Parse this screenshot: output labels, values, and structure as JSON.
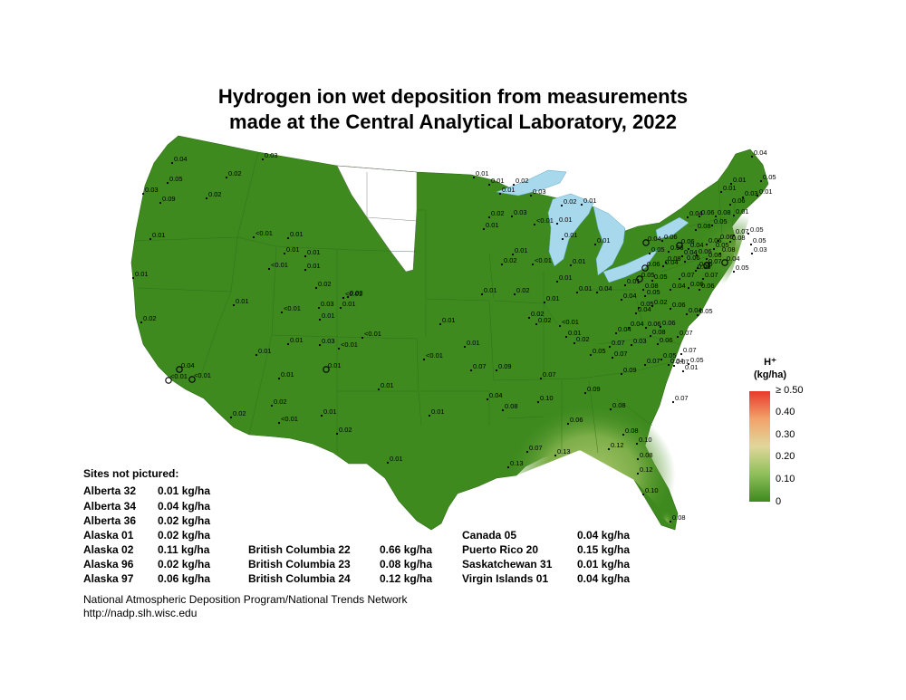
{
  "title_line1": "Hydrogen ion wet deposition from measurements",
  "title_line2": "made at the Central Analytical Laboratory, 2022",
  "legend": {
    "title_line1": "H⁺",
    "title_line2": "(kg/ha)",
    "ticks": [
      "≥ 0.50",
      "0.40",
      "0.30",
      "0.20",
      "0.10",
      "0"
    ],
    "colors": [
      "#3d8a1f",
      "#8fbf5a",
      "#e0d79a",
      "#f2a26a",
      "#e8392b"
    ]
  },
  "sites_not_pictured": {
    "title": "Sites not pictured:",
    "column1": [
      {
        "name": "Alberta 32",
        "value": "0.01 kg/ha"
      },
      {
        "name": "Alberta 34",
        "value": "0.04 kg/ha"
      },
      {
        "name": "Alberta 36",
        "value": "0.02 kg/ha"
      },
      {
        "name": "Alaska 01",
        "value": "0.02 kg/ha"
      },
      {
        "name": "Alaska 02",
        "value": "0.11 kg/ha"
      },
      {
        "name": "Alaska 96",
        "value": "0.02 kg/ha"
      },
      {
        "name": "Alaska 97",
        "value": "0.06 kg/ha"
      }
    ],
    "column2": [
      {
        "name": "British Columbia 22",
        "value": "0.66 kg/ha"
      },
      {
        "name": "British Columbia 23",
        "value": "0.08 kg/ha"
      },
      {
        "name": "British Columbia 24",
        "value": "0.12 kg/ha"
      }
    ],
    "column3": [
      {
        "name": "Canada 05",
        "value": "0.04 kg/ha"
      },
      {
        "name": "Puerto Rico 20",
        "value": "0.15 kg/ha"
      },
      {
        "name": "Saskatchewan 31",
        "value": "0.01 kg/ha"
      },
      {
        "name": "Virgin Islands 01",
        "value": "0.04 kg/ha"
      }
    ]
  },
  "footer": {
    "line1": "National Atmospheric Deposition Program/National Trends Network",
    "line2": "http://nadp.slh.wisc.edu"
  },
  "map_colors": {
    "land_green": "#3e8a1f",
    "land_light": "#9cc06a",
    "water": "#a8d8ec",
    "no_data": "#ffffff"
  },
  "station_values": [
    "0.04",
    "0.03",
    "0.02",
    "0.05",
    "0.03",
    "0.09",
    "0.02",
    "0.01",
    "0.01",
    "<0.01",
    "0.01",
    "0.01",
    "0.01",
    "<0.01",
    "0.01",
    "0.02",
    "<0.01",
    "0.03",
    "0.03",
    "0.01",
    "<0.01",
    "0.01",
    "0.01",
    "<0.01",
    "0.02",
    "0.01",
    "0.03",
    "<0.01",
    "0.01",
    "0.04",
    "<0.01",
    "<0.01",
    "0.01",
    "0.01",
    "0.01",
    "0.02",
    "0.01",
    "<0.01",
    "0.02",
    "0.02",
    "0.01",
    "0.01",
    "<0.01",
    "0.01",
    "0.01",
    "0.01",
    "0.02",
    "0.01",
    "0.01",
    "0.01",
    "0.02",
    "0.03",
    "0.02",
    "0.03",
    "0.01",
    "<0.01",
    "0.01",
    "0.02",
    "0.01",
    "0.01",
    "0.02",
    "<0.01",
    "0.01",
    "0.01",
    "0.01",
    "0.01",
    "0.01",
    "0.01",
    "0.02",
    "<0.01",
    "0.01",
    "0.02",
    "0.02",
    "0.04",
    "0.01",
    "0.04",
    "0.04",
    "0.04",
    "0.07",
    "0.05",
    "0.07",
    "0.03",
    "0.04",
    "0.08",
    "0.07",
    "0.09",
    "0.07",
    "0.10",
    "0.09",
    "0.06",
    "0.08",
    "0.07",
    "0.13",
    "0.13",
    "0.12",
    "0.10",
    "0.08",
    "0.12",
    "0.10",
    "0.08",
    "0.08",
    "0.07",
    "0.09",
    "0.05",
    "0.07",
    "0.08",
    "0.04",
    "0.06",
    "0.06",
    "0.07",
    "0.05",
    "0.02",
    "0.06",
    "0.05",
    "0.04",
    "0.06",
    "0.04",
    "0.05",
    "0.05",
    "0.06",
    "0.07",
    "0.06",
    "0.07",
    "0.04",
    "0.06",
    "0.08",
    "0.06",
    "0.03",
    "0.01",
    "0.01",
    "0.04",
    "0.05",
    "0.01",
    "0.01",
    "0.05",
    "0.08",
    "0.07",
    "0.05",
    "0.06",
    "0.06",
    "0.04",
    "0.05",
    "0.08",
    "0.05",
    "0.03",
    "0.04",
    "0.05",
    "0.06",
    "0.06",
    "0.04",
    "0.06",
    "0.08",
    "0.05",
    "0.06",
    "0.05",
    "0.04",
    "0.06",
    "0.06",
    "0.08",
    "0.07",
    "0.04",
    "0.05",
    "0.08",
    "0.06",
    "0.06",
    "0.07",
    "0.04",
    "0.01",
    "0.07",
    "0.05"
  ]
}
